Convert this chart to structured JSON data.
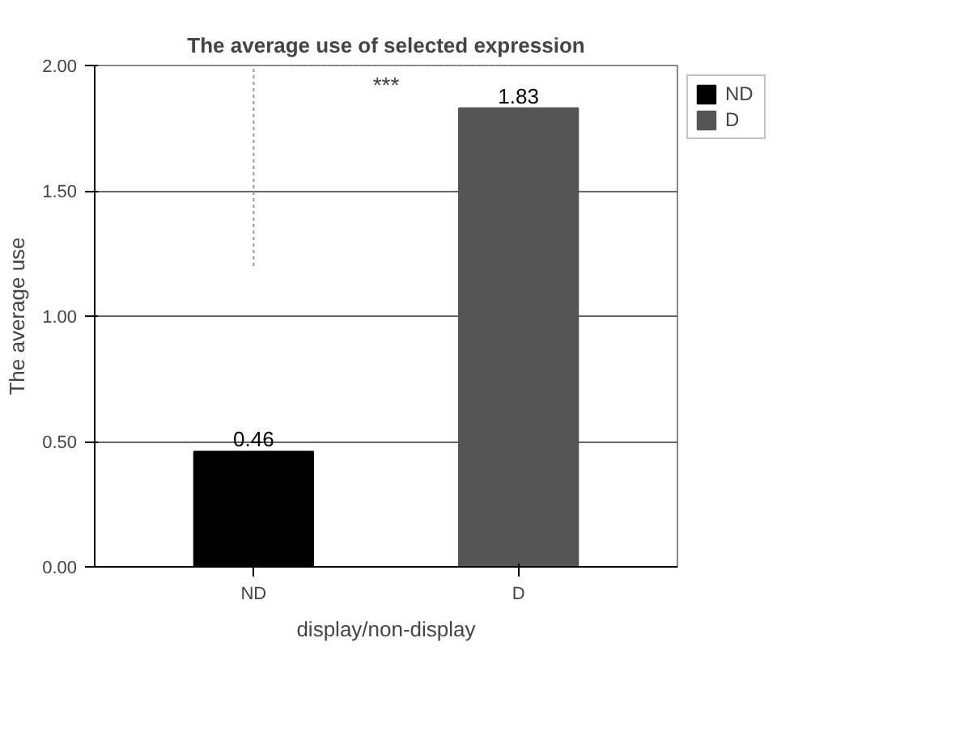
{
  "chart_data": {
    "type": "bar",
    "title": "The average use of selected expression",
    "xlabel": "display/non-display",
    "ylabel": "The average use",
    "categories": [
      "ND",
      "D"
    ],
    "series": [
      {
        "name": "ND",
        "color": "#000000",
        "values": [
          0.46,
          null
        ]
      },
      {
        "name": "D",
        "color": "#555555",
        "values": [
          null,
          1.83
        ]
      }
    ],
    "ylim": [
      0,
      2
    ],
    "yticks": [
      {
        "value": 0,
        "label": "0.00"
      },
      {
        "value": 0.5,
        "label": "0.50"
      },
      {
        "value": 1,
        "label": "1.00"
      },
      {
        "value": 1.5,
        "label": "1.50"
      },
      {
        "value": 2,
        "label": "2.00"
      }
    ],
    "grid": "y",
    "legend": "right",
    "data_labels": true,
    "annotations": [
      "***"
    ]
  }
}
